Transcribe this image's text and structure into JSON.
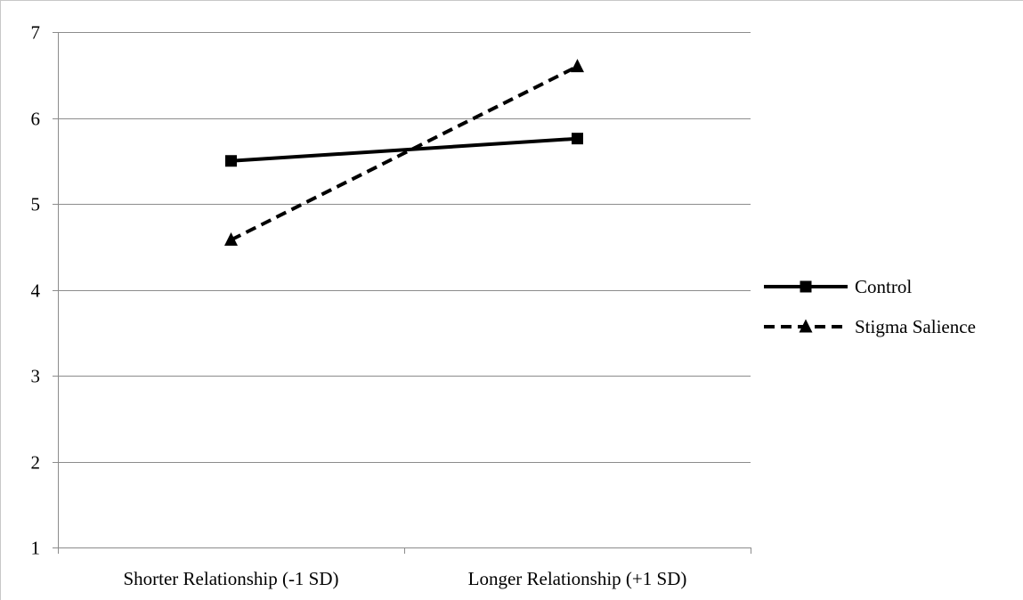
{
  "chart_data": {
    "type": "line",
    "title": "",
    "xlabel": "",
    "ylabel": "",
    "categories": [
      "Shorter Relationship (-1 SD)",
      "Longer Relationship (+1 SD)"
    ],
    "ylim": [
      1,
      7
    ],
    "yticks": [
      "1",
      "2",
      "3",
      "4",
      "5",
      "6",
      "7"
    ],
    "grid": true,
    "legend": "right",
    "series": [
      {
        "name": "Control",
        "values": [
          5.5,
          5.76
        ],
        "line_style": "solid",
        "marker": "square",
        "color": "#000000"
      },
      {
        "name": "Stigma Salience",
        "values": [
          4.58,
          6.6
        ],
        "line_style": "dashed",
        "marker": "triangle",
        "color": "#000000"
      }
    ]
  }
}
